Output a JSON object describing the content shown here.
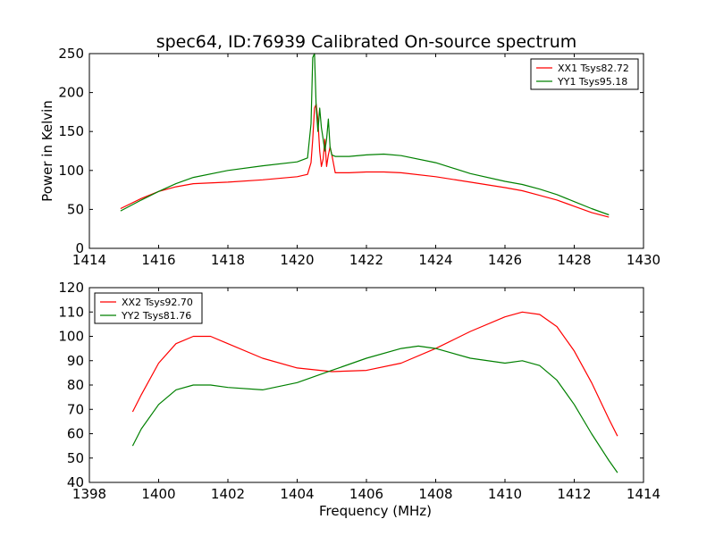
{
  "figure": {
    "title": "spec64, ID:76939 Calibrated On-source spectrum"
  },
  "chart_data": [
    {
      "type": "line",
      "title": "spec64, ID:76939 Calibrated On-source spectrum",
      "xlabel": "",
      "ylabel": "Power in Kelvin",
      "xlim": [
        1414,
        1430
      ],
      "ylim": [
        0,
        250
      ],
      "xticks": [
        1414,
        1416,
        1418,
        1420,
        1422,
        1424,
        1426,
        1428,
        1430
      ],
      "yticks": [
        0,
        50,
        100,
        150,
        200,
        250
      ],
      "grid": false,
      "legend_position": "top-right",
      "series": [
        {
          "name": "XX1 Tsys82.72",
          "color": "#ff0000",
          "x": [
            1414.9,
            1415.5,
            1416.0,
            1416.5,
            1417.0,
            1418.0,
            1419.0,
            1420.0,
            1420.3,
            1420.4,
            1420.45,
            1420.5,
            1420.55,
            1420.6,
            1420.65,
            1420.7,
            1420.75,
            1420.8,
            1420.85,
            1420.9,
            1420.95,
            1421.0,
            1421.1,
            1421.5,
            1422.0,
            1422.5,
            1423.0,
            1424.0,
            1425.0,
            1426.0,
            1426.5,
            1427.0,
            1427.5,
            1428.0,
            1428.5,
            1429.0
          ],
          "y": [
            51,
            64,
            73,
            79,
            83,
            85,
            88,
            92,
            95,
            110,
            140,
            180,
            185,
            165,
            125,
            105,
            115,
            140,
            105,
            120,
            130,
            120,
            97,
            97,
            98,
            98,
            97,
            92,
            85,
            78,
            74,
            68,
            62,
            54,
            46,
            40
          ]
        },
        {
          "name": "YY1 Tsys95.18",
          "color": "#008000",
          "x": [
            1414.9,
            1415.5,
            1416.0,
            1416.5,
            1417.0,
            1418.0,
            1419.0,
            1420.0,
            1420.3,
            1420.4,
            1420.45,
            1420.5,
            1420.55,
            1420.6,
            1420.65,
            1420.7,
            1420.75,
            1420.8,
            1420.85,
            1420.9,
            1420.95,
            1421.0,
            1421.1,
            1421.5,
            1422.0,
            1422.5,
            1423.0,
            1424.0,
            1425.0,
            1426.0,
            1426.5,
            1427.0,
            1427.5,
            1428.0,
            1428.5,
            1429.0
          ],
          "y": [
            48,
            62,
            73,
            83,
            91,
            100,
            106,
            111,
            116,
            160,
            245,
            250,
            180,
            150,
            180,
            155,
            140,
            125,
            140,
            166,
            130,
            120,
            118,
            118,
            120,
            121,
            119,
            110,
            96,
            86,
            82,
            76,
            69,
            60,
            51,
            43
          ]
        }
      ]
    },
    {
      "type": "line",
      "title": "",
      "xlabel": "Frequency (MHz)",
      "ylabel": "",
      "xlim": [
        1398,
        1414
      ],
      "ylim": [
        40,
        120
      ],
      "xticks": [
        1398,
        1400,
        1402,
        1404,
        1406,
        1408,
        1410,
        1412,
        1414
      ],
      "yticks": [
        40,
        50,
        60,
        70,
        80,
        90,
        100,
        110,
        120
      ],
      "grid": false,
      "legend_position": "top-left",
      "series": [
        {
          "name": "XX2 Tsys92.70",
          "color": "#ff0000",
          "x": [
            1399.25,
            1399.5,
            1400.0,
            1400.5,
            1401.0,
            1401.5,
            1402.0,
            1403.0,
            1404.0,
            1405.0,
            1406.0,
            1407.0,
            1408.0,
            1409.0,
            1410.0,
            1410.5,
            1411.0,
            1411.5,
            1412.0,
            1412.5,
            1413.0,
            1413.25
          ],
          "y": [
            69,
            76,
            89,
            97,
            100,
            100,
            97,
            91,
            87,
            85.5,
            86,
            89,
            95,
            102,
            108,
            110,
            109,
            104,
            94,
            81,
            66,
            59
          ]
        },
        {
          "name": "YY2 Tsys81.76",
          "color": "#008000",
          "x": [
            1399.25,
            1399.5,
            1400.0,
            1400.5,
            1401.0,
            1401.5,
            1402.0,
            1403.0,
            1404.0,
            1405.0,
            1406.0,
            1407.0,
            1407.5,
            1408.0,
            1409.0,
            1410.0,
            1410.5,
            1411.0,
            1411.5,
            1412.0,
            1412.5,
            1413.0,
            1413.25
          ],
          "y": [
            55,
            62,
            72,
            78,
            80,
            80,
            79,
            78,
            81,
            86,
            91,
            95,
            96,
            95,
            91,
            89,
            90,
            88,
            82,
            72,
            60,
            49,
            44
          ]
        }
      ]
    }
  ]
}
